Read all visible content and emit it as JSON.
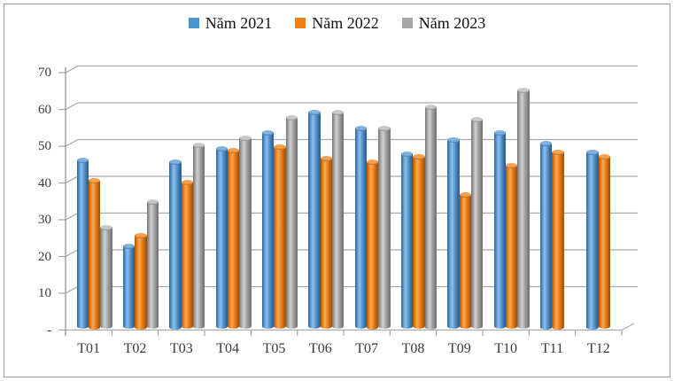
{
  "legend": {
    "position": "top-center"
  },
  "chart_data": {
    "type": "bar",
    "subtype": "3d-cylinder-clustered",
    "title": "",
    "xlabel": "",
    "ylabel": "",
    "categories": [
      "T01",
      "T02",
      "T03",
      "T04",
      "T05",
      "T06",
      "T07",
      "T08",
      "T09",
      "T10",
      "T11",
      "T12"
    ],
    "series": [
      {
        "name": "Năm 2021",
        "color": "#4a94d0",
        "values": [
          45.5,
          22,
          45,
          48.5,
          53,
          58.5,
          54,
          47,
          51,
          53,
          50,
          47.5
        ]
      },
      {
        "name": "Năm 2022",
        "color": "#f57e14",
        "values": [
          40,
          25,
          39.5,
          48,
          49,
          46,
          45,
          46.5,
          36,
          44,
          47.5,
          46.5
        ]
      },
      {
        "name": "Năm 2023",
        "color": "#a6a6a6",
        "values": [
          27,
          34,
          49.5,
          51.5,
          57,
          58.5,
          54,
          60,
          56.5,
          64.5,
          null,
          null
        ]
      }
    ],
    "ylim": [
      0,
      70
    ],
    "ytick_step": 10,
    "yticks": [
      {
        "value": 70,
        "label": "70"
      },
      {
        "value": 60,
        "label": "60"
      },
      {
        "value": 50,
        "label": "50"
      },
      {
        "value": 40,
        "label": "40"
      },
      {
        "value": 30,
        "label": "30"
      },
      {
        "value": 20,
        "label": "20"
      },
      {
        "value": 10,
        "label": "10"
      },
      {
        "value": 0,
        "label": "-"
      }
    ],
    "grid": true,
    "legend_position": "top-center",
    "colors": {
      "gridline": "#a8a8a8",
      "axis": "#8c8c8c",
      "tick_label": "#3a3a3a",
      "legend_text": "#121212",
      "frame_border": "#9a9a9a",
      "background": "#ffffff"
    }
  }
}
